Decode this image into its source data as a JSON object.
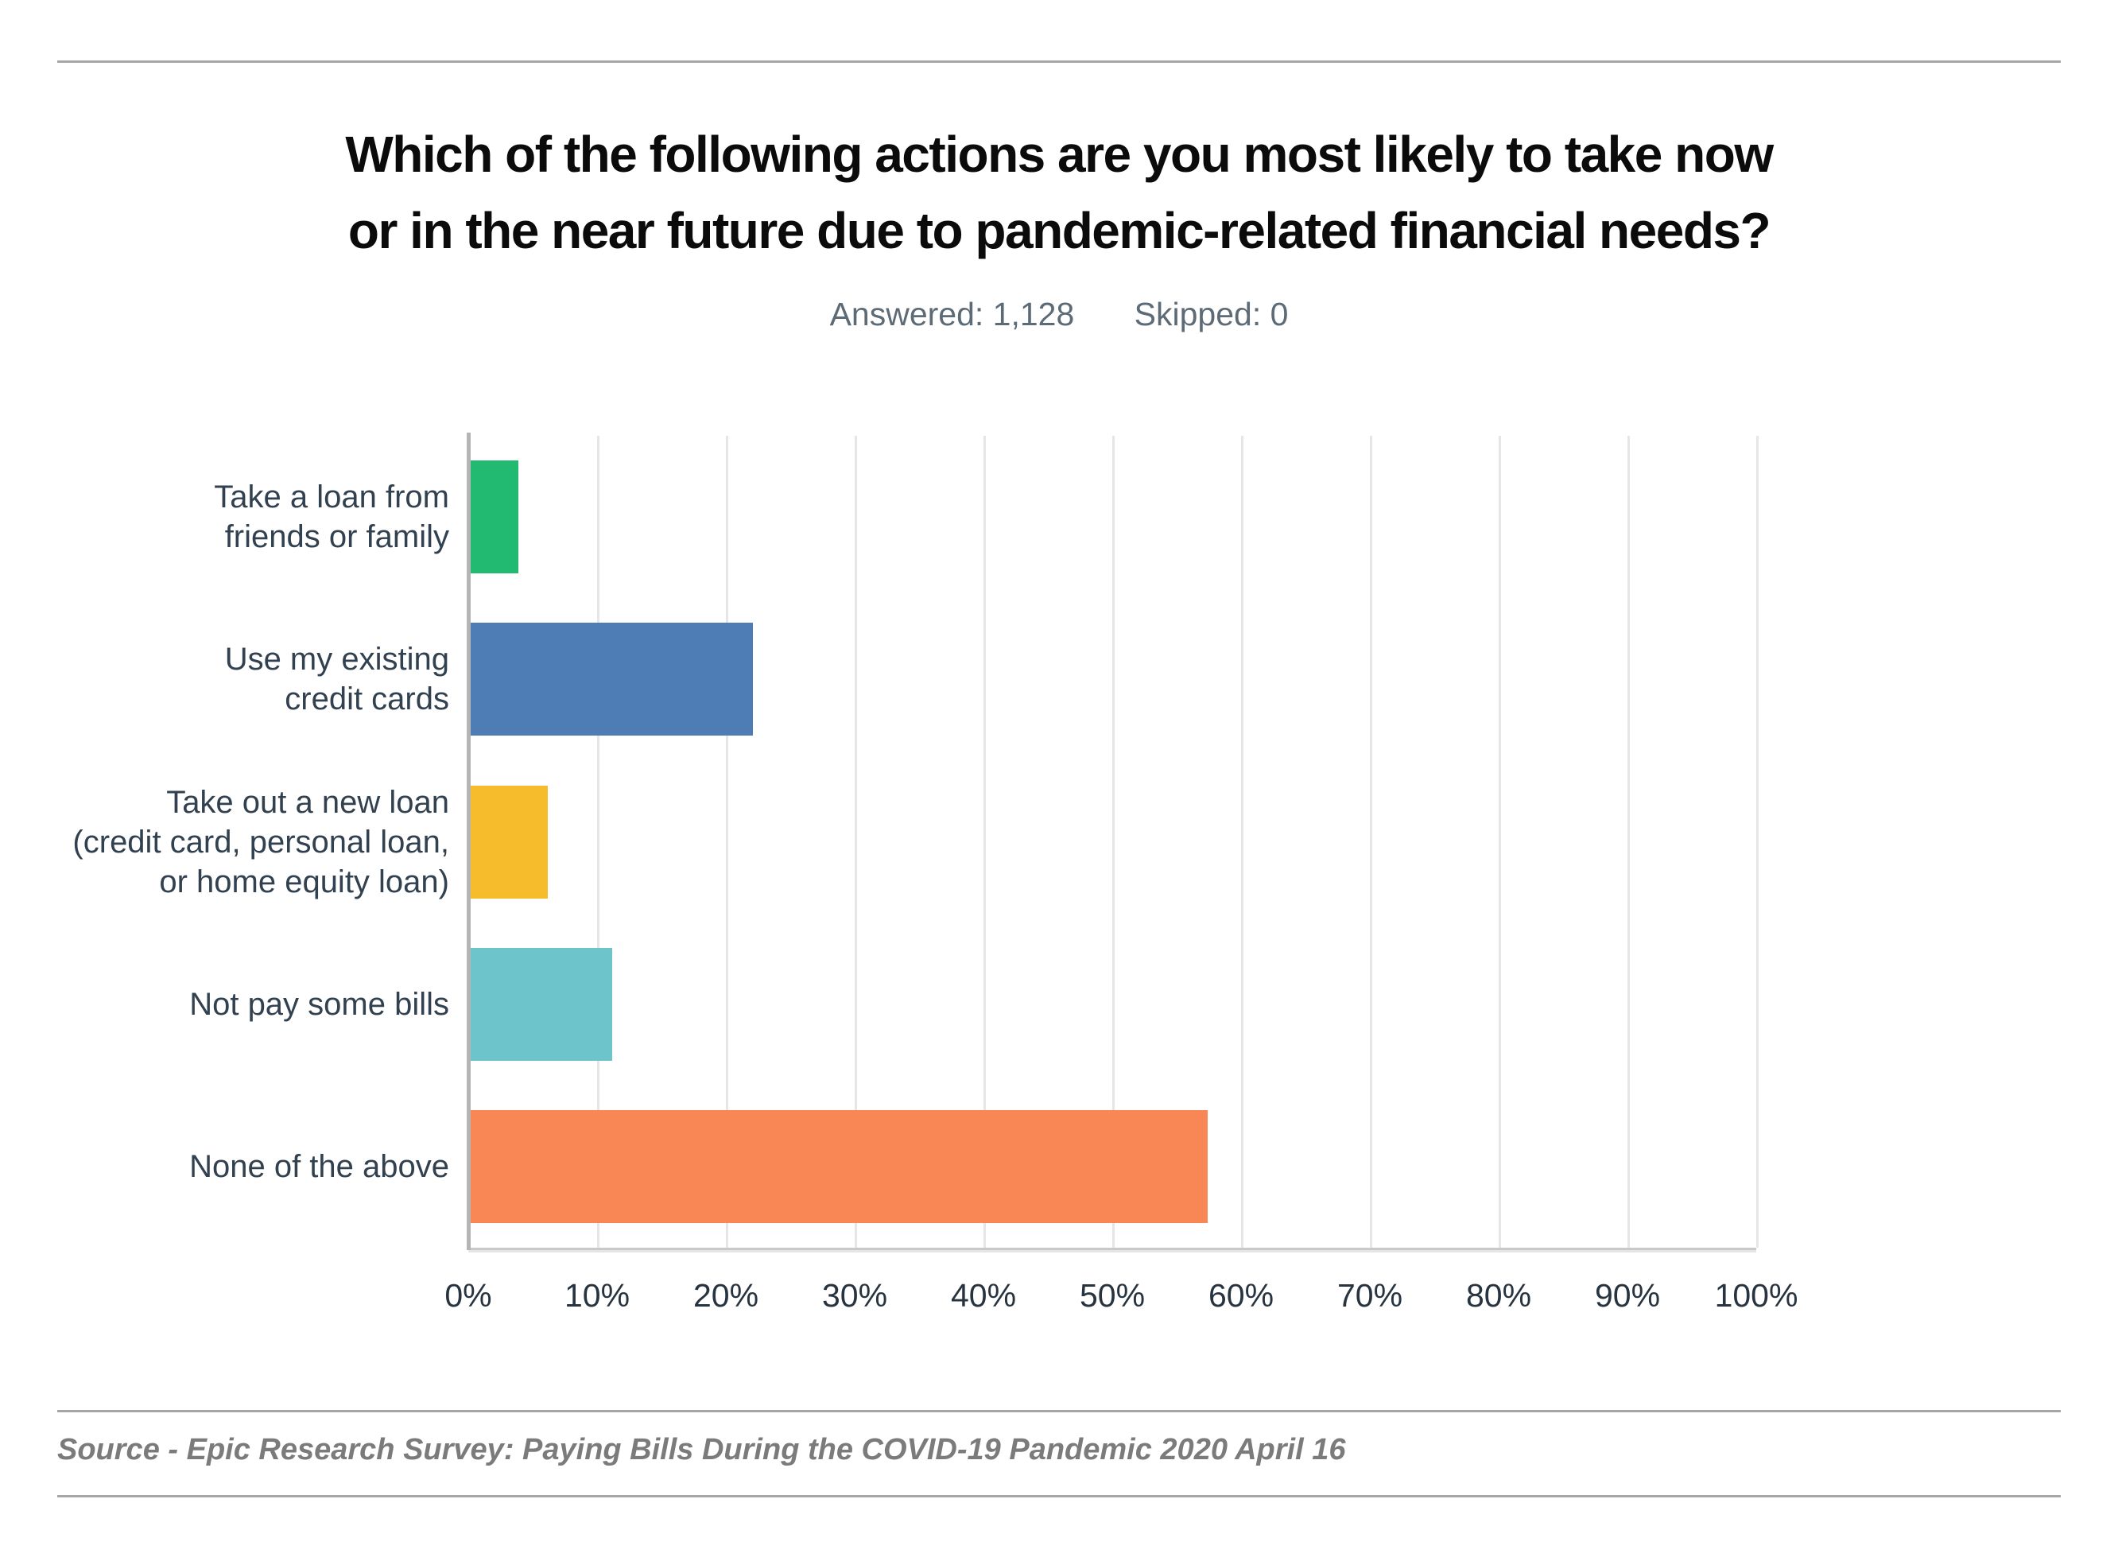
{
  "page": {
    "background": "#FFFFFF"
  },
  "header": {
    "title_lines": [
      "Which of the following actions are you most likely to take now",
      "or in the near future due to pandemic-related financial needs?"
    ],
    "answered": "Answered: 1,128",
    "skipped": "Skipped: 0"
  },
  "chart_data": {
    "type": "bar",
    "orientation": "horizontal",
    "title": "Which of the following actions are you most likely to take now or in the near future due to pandemic-related financial needs?",
    "answered_count": "1,128",
    "skipped_count": "0",
    "categories": [
      "Take a loan from\nfriends or family",
      "Use my existing\ncredit cards",
      "Take out a new loan\n(credit card, personal loan,\nor home equity loan)",
      "Not pay some bills",
      "None of the above"
    ],
    "values_percent": [
      3.7,
      21.9,
      6,
      11,
      57.2
    ],
    "bar_colors": [
      "#21BA70",
      "#4E7CB5",
      "#F6BC2C",
      "#6DC5CB",
      "#F98755"
    ],
    "x_ticks": [
      "0%",
      "10%",
      "20%",
      "30%",
      "40%",
      "50%",
      "60%",
      "70%",
      "80%",
      "90%",
      "100%"
    ],
    "xlim": [
      0,
      100
    ],
    "grid": true,
    "legend": "none"
  },
  "footer": {
    "source": "Source - Epic Research Survey: Paying Bills During the COVID-19 Pandemic 2020 April 16"
  },
  "colors": {
    "title": "#0B0B0B",
    "subtitle": "#5D6B77",
    "category_label": "#32414F",
    "tick_label": "#273440",
    "grid_line": "#E6E6E6",
    "axis_line": "#B5B5B5",
    "baseline": "#C9C9C9",
    "rule": "#A6A6A6",
    "source_text": "#7B7B7B"
  }
}
